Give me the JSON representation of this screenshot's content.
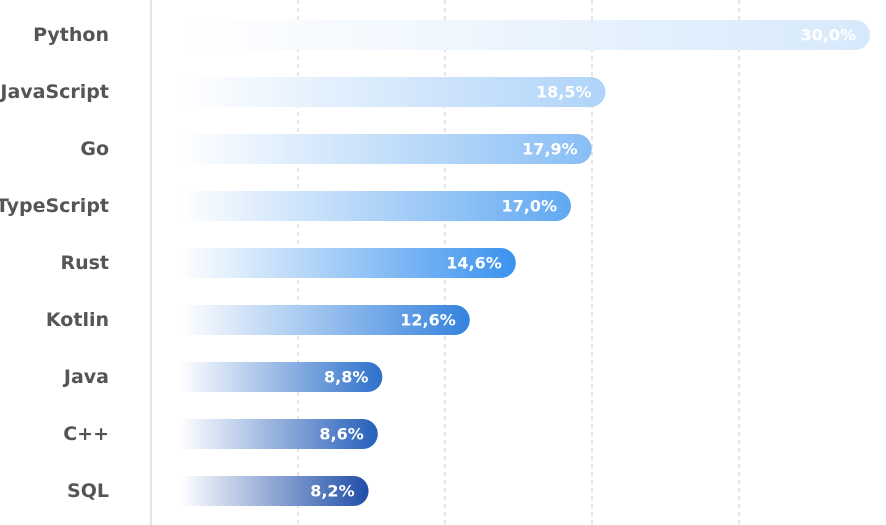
{
  "chart_data": {
    "type": "bar",
    "orientation": "horizontal",
    "categories": [
      "Python",
      "JavaScript",
      "Go",
      "TypeScript",
      "Rust",
      "Kotlin",
      "Java",
      "C++",
      "SQL"
    ],
    "values": [
      30.0,
      18.5,
      17.9,
      17.0,
      14.6,
      12.6,
      8.8,
      8.6,
      8.2
    ],
    "value_labels": [
      "30,0%",
      "18,5%",
      "17,9%",
      "17,0%",
      "14,6%",
      "12,6%",
      "8,8%",
      "8,6%",
      "8,2%"
    ],
    "xlim": [
      0,
      30
    ],
    "grid": "vertical dashed",
    "legend": "none",
    "colors": {
      "bar_start": "#ffffff",
      "light_end": "#d6e9fc",
      "mid_end": "#3a92ee",
      "dark_end": "#1f4ea8",
      "axis_line": "#cccccc",
      "grid_line": "#c8c8c8",
      "label_color": "#555555"
    }
  }
}
